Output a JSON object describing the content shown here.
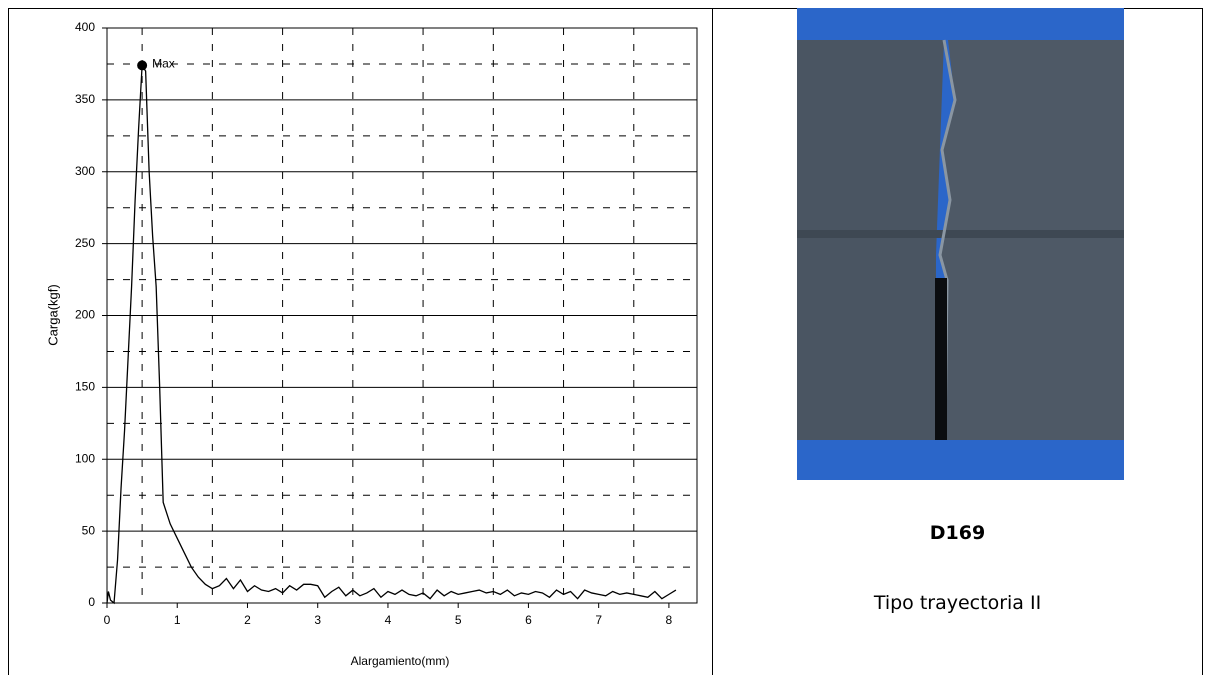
{
  "chart_data": {
    "type": "line",
    "x_label": "Alargamiento(mm)",
    "y_label": "Carga(kgf)",
    "x": [
      0,
      0.02,
      0.05,
      0.1,
      0.15,
      0.2,
      0.25,
      0.3,
      0.35,
      0.4,
      0.45,
      0.5,
      0.55,
      0.6,
      0.65,
      0.7,
      0.75,
      0.8,
      0.9,
      1.0,
      1.1,
      1.2,
      1.3,
      1.4,
      1.5,
      1.6,
      1.7,
      1.8,
      1.9,
      2.0,
      2.1,
      2.2,
      2.3,
      2.4,
      2.5,
      2.6,
      2.7,
      2.8,
      2.9,
      3.0,
      3.1,
      3.2,
      3.3,
      3.4,
      3.5,
      3.6,
      3.7,
      3.8,
      3.9,
      4.0,
      4.1,
      4.2,
      4.3,
      4.4,
      4.5,
      4.6,
      4.7,
      4.8,
      4.9,
      5.0,
      5.1,
      5.2,
      5.3,
      5.4,
      5.5,
      5.6,
      5.7,
      5.8,
      5.9,
      6.0,
      6.1,
      6.2,
      6.3,
      6.4,
      6.5,
      6.6,
      6.7,
      6.8,
      6.9,
      7.0,
      7.1,
      7.2,
      7.3,
      7.4,
      7.5,
      7.6,
      7.7,
      7.8,
      7.9,
      8.0,
      8.1
    ],
    "values": [
      0,
      8,
      2,
      0,
      30,
      80,
      120,
      170,
      220,
      280,
      330,
      374,
      370,
      300,
      255,
      220,
      150,
      70,
      55,
      45,
      35,
      25,
      18,
      13,
      10,
      12,
      17,
      10,
      16,
      8,
      12,
      9,
      8,
      10,
      7,
      12,
      9,
      13,
      13,
      12,
      4,
      8,
      11,
      5,
      9,
      5,
      7,
      10,
      4,
      8,
      6,
      9,
      6,
      5,
      7,
      3,
      9,
      5,
      8,
      6,
      7,
      8,
      9,
      7,
      8,
      6,
      9,
      5,
      7,
      6,
      8,
      7,
      4,
      9,
      6,
      8,
      3,
      9,
      7,
      6,
      5,
      8,
      6,
      7,
      6,
      5,
      4,
      8,
      3,
      6,
      9
    ],
    "color": "#000000",
    "annotation": {
      "text": "Max",
      "x": 0.5,
      "y": 374
    },
    "xlim": [
      0,
      8.4
    ],
    "ylim": [
      0,
      400
    ],
    "xticks": [
      0,
      1,
      2,
      3,
      4,
      5,
      6,
      7,
      8
    ],
    "yticks": [
      0,
      50,
      100,
      150,
      200,
      250,
      300,
      350,
      400
    ],
    "grid": true,
    "minor_grid": "dashed"
  },
  "caption": {
    "id": "D169",
    "description": "Tipo trayectoria II"
  }
}
